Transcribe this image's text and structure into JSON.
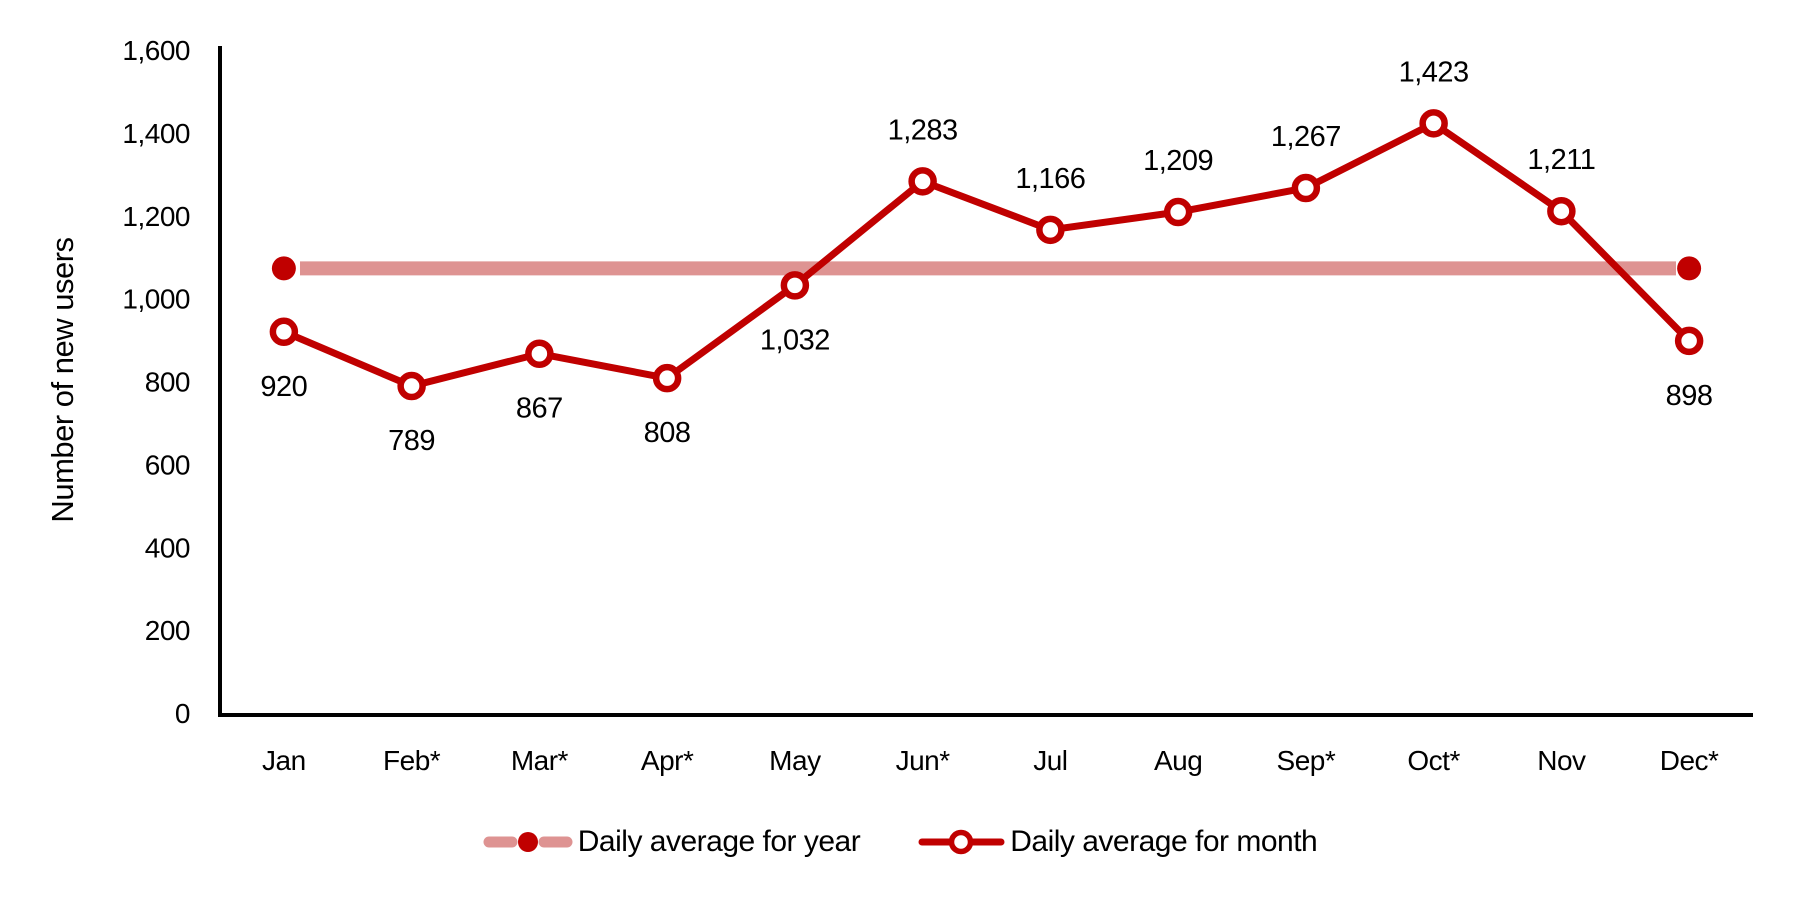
{
  "chart_data": {
    "type": "line",
    "title": "",
    "xlabel": "",
    "ylabel": "Number of new users",
    "ylim": [
      0,
      1600
    ],
    "ytick_step": 200,
    "yticks": [
      "0",
      "200",
      "400",
      "600",
      "800",
      "1,000",
      "1,200",
      "1,400",
      "1,600"
    ],
    "grid": false,
    "legend_position": "bottom",
    "categories": [
      "Jan",
      "Feb*",
      "Mar*",
      "Apr*",
      "May",
      "Jun*",
      "Jul",
      "Aug",
      "Sep*",
      "Oct*",
      "Nov",
      "Dec*"
    ],
    "series": [
      {
        "name": "Daily average for year",
        "type": "constant-line",
        "value": 1073,
        "color": "#de9392",
        "endpoint_color": "#c00000"
      },
      {
        "name": "Daily average for month",
        "type": "line",
        "marker": "open-circle",
        "color": "#c00000",
        "values": [
          920,
          789,
          867,
          808,
          1032,
          1283,
          1166,
          1209,
          1267,
          1423,
          1211,
          898
        ],
        "data_labels": [
          "920",
          "789",
          "867",
          "808",
          "1,032",
          "1,283",
          "1,166",
          "1,209",
          "1,267",
          "1,423",
          "1,211",
          "898"
        ],
        "label_positions": [
          "below",
          "below",
          "below",
          "below",
          "below",
          "above",
          "above",
          "above",
          "above",
          "above",
          "above",
          "below"
        ]
      }
    ]
  },
  "legend": {
    "items": [
      {
        "label": "Daily average for year",
        "marker": "thick-pink-line-filled-dot"
      },
      {
        "label": "Daily average for month",
        "marker": "red-line-open-circle"
      }
    ]
  },
  "colors": {
    "series_red": "#c00000",
    "average_pink": "#de9392",
    "axis": "#000000",
    "text": "#000000"
  }
}
